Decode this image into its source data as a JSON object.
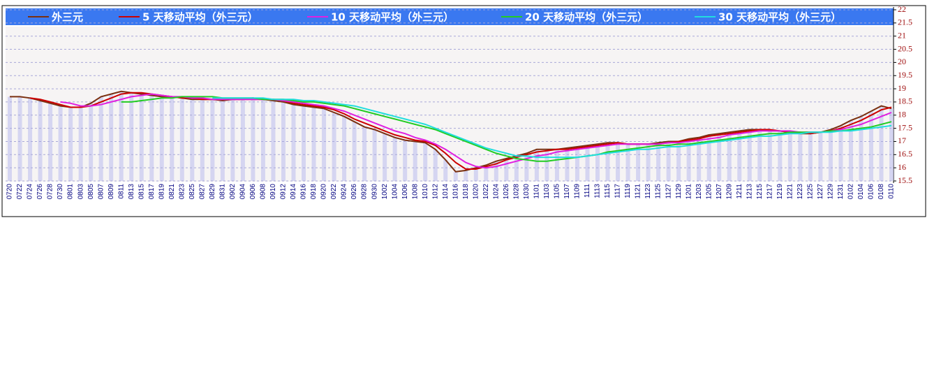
{
  "chart_data": {
    "type": "line",
    "legend": "top",
    "grid": true,
    "ylim": [
      15.5,
      22
    ],
    "yticks": [
      15.5,
      16,
      16.5,
      17,
      17.5,
      18,
      18.5,
      19,
      19.5,
      20,
      20.5,
      21,
      21.5,
      22
    ],
    "categories": [
      "0720",
      "0722",
      "0724",
      "0726",
      "0728",
      "0730",
      "0801",
      "0803",
      "0805",
      "0807",
      "0809",
      "0811",
      "0813",
      "0815",
      "0817",
      "0819",
      "0821",
      "0823",
      "0825",
      "0827",
      "0829",
      "0831",
      "0902",
      "0904",
      "0906",
      "0908",
      "0910",
      "0912",
      "0914",
      "0916",
      "0918",
      "0920",
      "0922",
      "0924",
      "0926",
      "0928",
      "0930",
      "1002",
      "1004",
      "1006",
      "1008",
      "1010",
      "1012",
      "1014",
      "1016",
      "1018",
      "1020",
      "1022",
      "1024",
      "1026",
      "1028",
      "1030",
      "1101",
      "1103",
      "1105",
      "1107",
      "1109",
      "1111",
      "1113",
      "1115",
      "1117",
      "1119",
      "1121",
      "1123",
      "1125",
      "1127",
      "1129",
      "1201",
      "1203",
      "1205",
      "1207",
      "1209",
      "1211",
      "1213",
      "1215",
      "1217",
      "1219",
      "1221",
      "1223",
      "1225",
      "1227",
      "1229",
      "1231",
      "0102",
      "0104",
      "0106",
      "0108",
      "0110"
    ],
    "series": [
      {
        "name": "外三元",
        "color": "#7a3010",
        "values": [
          18.7,
          18.7,
          18.65,
          18.55,
          18.45,
          18.35,
          18.3,
          18.3,
          18.45,
          18.7,
          18.8,
          18.9,
          18.85,
          18.8,
          18.75,
          18.7,
          18.7,
          18.65,
          18.6,
          18.6,
          18.6,
          18.55,
          18.6,
          18.6,
          18.65,
          18.6,
          18.55,
          18.5,
          18.4,
          18.35,
          18.3,
          18.25,
          18.1,
          17.95,
          17.75,
          17.55,
          17.45,
          17.3,
          17.15,
          17.05,
          17.0,
          16.95,
          16.7,
          16.3,
          15.85,
          15.9,
          16.0,
          16.1,
          16.25,
          16.35,
          16.45,
          16.55,
          16.7,
          16.7,
          16.7,
          16.75,
          16.8,
          16.85,
          16.9,
          16.95,
          16.95,
          16.9,
          16.9,
          16.9,
          16.95,
          17.0,
          17.0,
          17.1,
          17.15,
          17.25,
          17.3,
          17.35,
          17.4,
          17.45,
          17.45,
          17.4,
          17.4,
          17.35,
          17.3,
          17.3,
          17.35,
          17.45,
          17.6,
          17.8,
          17.95,
          18.15,
          18.35,
          18.25
        ]
      },
      {
        "name": "5 天移动平均（外三元）",
        "color": "#cc0000",
        "values": [
          null,
          null,
          18.65,
          18.6,
          18.5,
          18.4,
          18.3,
          18.3,
          18.35,
          18.5,
          18.65,
          18.8,
          18.85,
          18.85,
          18.8,
          18.75,
          18.7,
          18.65,
          18.65,
          18.6,
          18.6,
          18.6,
          18.6,
          18.6,
          18.6,
          18.6,
          18.6,
          18.55,
          18.45,
          18.4,
          18.35,
          18.3,
          18.2,
          18.05,
          17.85,
          17.7,
          17.55,
          17.4,
          17.25,
          17.15,
          17.05,
          17.0,
          16.85,
          16.55,
          16.2,
          15.95,
          15.95,
          16.05,
          16.15,
          16.3,
          16.4,
          16.5,
          16.6,
          16.65,
          16.7,
          16.7,
          16.75,
          16.8,
          16.85,
          16.9,
          16.95,
          16.9,
          16.9,
          16.9,
          16.9,
          16.95,
          17.0,
          17.05,
          17.1,
          17.2,
          17.25,
          17.3,
          17.35,
          17.4,
          17.45,
          17.45,
          17.4,
          17.35,
          17.35,
          17.3,
          17.35,
          17.4,
          17.5,
          17.65,
          17.8,
          18.0,
          18.2,
          18.3
        ]
      },
      {
        "name": "10 天移动平均（外三元）",
        "color": "#e020e0",
        "values": [
          null,
          null,
          null,
          null,
          null,
          18.5,
          18.45,
          18.35,
          18.35,
          18.4,
          18.5,
          18.6,
          18.7,
          18.75,
          18.8,
          18.75,
          18.7,
          18.7,
          18.65,
          18.65,
          18.6,
          18.6,
          18.6,
          18.6,
          18.6,
          18.6,
          18.6,
          18.55,
          18.5,
          18.45,
          18.4,
          18.35,
          18.25,
          18.15,
          18.0,
          17.85,
          17.7,
          17.55,
          17.4,
          17.3,
          17.15,
          17.05,
          16.9,
          16.7,
          16.45,
          16.2,
          16.05,
          16.0,
          16.05,
          16.15,
          16.25,
          16.35,
          16.45,
          16.5,
          16.6,
          16.65,
          16.7,
          16.75,
          16.8,
          16.85,
          16.9,
          16.9,
          16.9,
          16.9,
          16.9,
          16.95,
          16.95,
          17.0,
          17.05,
          17.1,
          17.15,
          17.25,
          17.3,
          17.35,
          17.4,
          17.4,
          17.4,
          17.4,
          17.35,
          17.35,
          17.35,
          17.4,
          17.45,
          17.55,
          17.65,
          17.8,
          17.95,
          18.1
        ]
      },
      {
        "name": "20 天移动平均（外三元）",
        "color": "#22cc22",
        "values": [
          null,
          null,
          null,
          null,
          null,
          null,
          null,
          null,
          null,
          null,
          null,
          18.5,
          18.5,
          18.55,
          18.6,
          18.65,
          18.65,
          18.7,
          18.7,
          18.7,
          18.7,
          18.65,
          18.65,
          18.65,
          18.65,
          18.6,
          18.6,
          18.6,
          18.55,
          18.5,
          18.5,
          18.45,
          18.4,
          18.35,
          18.25,
          18.15,
          18.05,
          17.95,
          17.85,
          17.75,
          17.65,
          17.55,
          17.45,
          17.3,
          17.15,
          17.0,
          16.85,
          16.7,
          16.55,
          16.45,
          16.35,
          16.3,
          16.25,
          16.25,
          16.3,
          16.35,
          16.4,
          16.45,
          16.5,
          16.6,
          16.65,
          16.7,
          16.75,
          16.8,
          16.85,
          16.85,
          16.9,
          16.9,
          16.95,
          17.0,
          17.05,
          17.1,
          17.15,
          17.2,
          17.25,
          17.3,
          17.3,
          17.35,
          17.35,
          17.35,
          17.35,
          17.4,
          17.4,
          17.45,
          17.5,
          17.55,
          17.65,
          17.75
        ]
      },
      {
        "name": "30 天移动平均（外三元）",
        "color": "#22dddd",
        "values": [
          null,
          null,
          null,
          null,
          null,
          null,
          null,
          null,
          null,
          null,
          null,
          null,
          null,
          null,
          null,
          null,
          null,
          null,
          null,
          null,
          18.65,
          18.65,
          18.65,
          18.65,
          18.65,
          18.65,
          18.6,
          18.6,
          18.6,
          18.55,
          18.55,
          18.5,
          18.45,
          18.4,
          18.35,
          18.25,
          18.15,
          18.05,
          17.95,
          17.85,
          17.75,
          17.65,
          17.5,
          17.35,
          17.2,
          17.05,
          16.9,
          16.75,
          16.65,
          16.55,
          16.45,
          16.45,
          16.4,
          16.4,
          16.4,
          16.4,
          16.4,
          16.45,
          16.5,
          16.55,
          16.6,
          16.65,
          16.7,
          16.7,
          16.75,
          16.8,
          16.8,
          16.85,
          16.9,
          16.95,
          17.0,
          17.05,
          17.1,
          17.15,
          17.2,
          17.2,
          17.25,
          17.3,
          17.3,
          17.35,
          17.35,
          17.35,
          17.4,
          17.4,
          17.45,
          17.5,
          17.55,
          17.6
        ]
      }
    ]
  }
}
